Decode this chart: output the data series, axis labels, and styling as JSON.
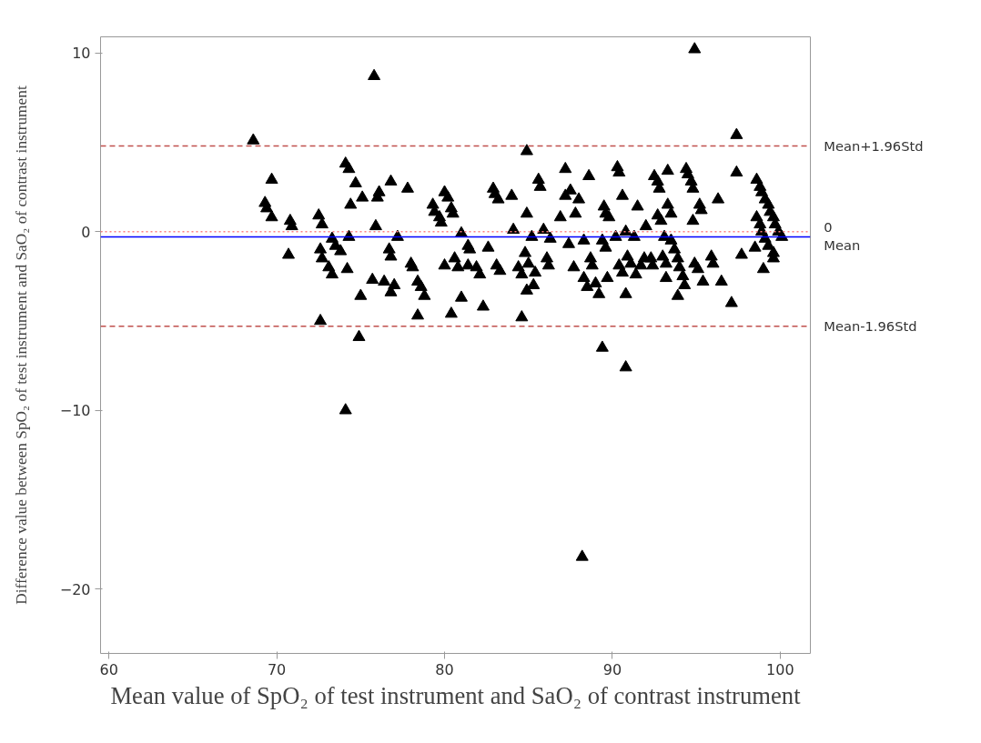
{
  "chart_data": {
    "type": "scatter",
    "xlabel": "Mean value of SpO₂ of test instrument and SaO₂ of contrast instrument",
    "ylabel": "Difference value between SpO₂ of test instrument and SaO₂ of contrast instrument",
    "xlim": [
      59.5,
      101.8
    ],
    "ylim": [
      -23.6,
      10.9
    ],
    "xticks": [
      60,
      70,
      80,
      90,
      100
    ],
    "yticks": [
      -20,
      -10,
      0,
      10
    ],
    "grid": false,
    "marker": "triangle",
    "series": [
      {
        "color": "#000000",
        "x": [
          68.6,
          69.3,
          69.4,
          69.7,
          69.7,
          70.8,
          70.9,
          70.7,
          72.5,
          72.7,
          72.6,
          72.7,
          72.6,
          73.1,
          73.3,
          73.3,
          73.5,
          73.8,
          74.1,
          74.3,
          74.3,
          74.2,
          74.4,
          74.1,
          74.7,
          75.1,
          75.0,
          74.9,
          75.7,
          75.8,
          75.9,
          76.0,
          76.1,
          76.4,
          76.7,
          76.8,
          76.8,
          76.8,
          77.0,
          77.2,
          77.8,
          78.0,
          78.1,
          78.4,
          78.6,
          78.4,
          78.8,
          79.3,
          79.4,
          79.7,
          79.8,
          80.0,
          80.2,
          80.0,
          80.4,
          80.5,
          80.6,
          80.8,
          80.4,
          81.0,
          81.0,
          81.4,
          81.5,
          81.4,
          81.9,
          82.1,
          82.3,
          82.6,
          82.9,
          83.0,
          83.2,
          83.1,
          83.3,
          84.0,
          84.1,
          84.4,
          84.6,
          84.6,
          84.9,
          84.9,
          84.8,
          85.0,
          84.9,
          85.2,
          85.6,
          85.7,
          85.4,
          85.3,
          85.9,
          86.1,
          86.2,
          86.3,
          86.9,
          87.2,
          87.5,
          87.2,
          87.4,
          87.7,
          87.8,
          88.0,
          88.3,
          88.5,
          88.3,
          88.6,
          88.2,
          88.7,
          88.8,
          89.0,
          89.2,
          89.4,
          89.4,
          89.6,
          89.5,
          89.6,
          89.8,
          89.7,
          90.2,
          90.3,
          90.4,
          90.6,
          90.4,
          90.6,
          90.8,
          90.8,
          90.8,
          90.9,
          91.1,
          91.3,
          91.5,
          91.4,
          91.7,
          91.9,
          92.0,
          92.3,
          92.4,
          92.5,
          92.7,
          92.8,
          92.7,
          92.9,
          93.1,
          93.0,
          93.2,
          93.2,
          93.3,
          93.5,
          93.3,
          93.5,
          93.7,
          93.9,
          94.0,
          94.2,
          94.3,
          93.9,
          94.4,
          94.5,
          94.7,
          94.8,
          94.8,
          94.9,
          94.9,
          95.1,
          95.2,
          95.3,
          95.4,
          95.9,
          96.0,
          96.3,
          96.5,
          97.1,
          97.4,
          97.4,
          97.7,
          98.5,
          98.6,
          98.8,
          98.9,
          99.1,
          99.3,
          99.4,
          99.6,
          99.7,
          99.9,
          100.1,
          98.6,
          98.8,
          98.9,
          99.1,
          99.3,
          99.6,
          99.0,
          99.6
        ],
        "values": [
          5.1,
          1.6,
          1.3,
          2.9,
          0.8,
          0.6,
          0.3,
          -1.3,
          0.9,
          0.4,
          -1.0,
          -1.5,
          -5.0,
          -2.0,
          -2.4,
          -0.4,
          -0.8,
          -1.1,
          3.8,
          3.5,
          -0.3,
          -2.1,
          1.5,
          -10.0,
          2.7,
          1.9,
          -3.6,
          -5.9,
          -2.7,
          8.7,
          0.3,
          1.9,
          2.2,
          -2.8,
          -1.0,
          -1.4,
          2.8,
          -3.4,
          -3.0,
          -0.3,
          2.4,
          -1.8,
          -2.0,
          -2.8,
          -3.1,
          -4.7,
          -3.6,
          1.5,
          1.1,
          0.8,
          0.5,
          2.2,
          1.9,
          -1.9,
          1.3,
          1.0,
          -1.5,
          -2.0,
          -4.6,
          -0.1,
          -3.7,
          -0.8,
          -1.0,
          -1.9,
          -2.0,
          -2.4,
          -4.2,
          -0.9,
          2.4,
          2.1,
          1.8,
          -1.9,
          -2.2,
          2.0,
          0.1,
          -2.0,
          -2.4,
          -4.8,
          4.5,
          1.0,
          -1.2,
          -1.8,
          -3.3,
          -0.3,
          2.9,
          2.5,
          -2.3,
          -3.0,
          0.1,
          -1.5,
          -1.9,
          -0.4,
          0.8,
          2.0,
          2.3,
          3.5,
          -0.7,
          -2.0,
          1.0,
          1.8,
          -2.6,
          -3.1,
          -0.5,
          3.1,
          -18.2,
          -1.5,
          -1.9,
          -2.9,
          -3.5,
          -6.5,
          -0.5,
          -0.9,
          1.4,
          1.0,
          0.8,
          -2.6,
          -0.3,
          3.6,
          3.3,
          2.0,
          -1.9,
          -2.3,
          0.0,
          -7.6,
          -3.5,
          -1.4,
          -1.8,
          -0.3,
          1.4,
          -2.4,
          -1.9,
          -1.5,
          0.3,
          -1.5,
          -1.9,
          3.1,
          2.8,
          2.4,
          0.9,
          0.6,
          -0.3,
          -1.4,
          -1.8,
          -2.6,
          3.4,
          1.0,
          1.5,
          -0.5,
          -1.0,
          -1.5,
          -2.0,
          -2.5,
          -3.0,
          -3.6,
          3.5,
          3.2,
          2.8,
          2.4,
          0.6,
          10.2,
          -1.8,
          -2.1,
          1.5,
          1.2,
          -2.8,
          -1.4,
          -1.8,
          1.8,
          -2.8,
          -4.0,
          5.4,
          3.3,
          -1.3,
          -0.9,
          2.9,
          2.5,
          2.2,
          1.8,
          1.5,
          1.1,
          0.8,
          0.4,
          0.0,
          -0.3,
          0.8,
          0.4,
          0.0,
          -0.4,
          -0.8,
          -1.2,
          -2.1,
          -1.5
        ]
      }
    ],
    "ref_lines": [
      {
        "axis": "y",
        "value": 4.8,
        "label": "Mean+1.96Std",
        "color": "#c0504d",
        "line_style": "dashed"
      },
      {
        "axis": "y",
        "value": 0,
        "label": "0",
        "color": "#ff8080",
        "line_style": "dotted"
      },
      {
        "axis": "y",
        "value": -0.3,
        "label": "Mean",
        "color": "#0000ff",
        "line_style": "solid"
      },
      {
        "axis": "y",
        "value": -5.3,
        "label": "Mean-1.96Std",
        "color": "#c0504d",
        "line_style": "dashed"
      }
    ]
  }
}
